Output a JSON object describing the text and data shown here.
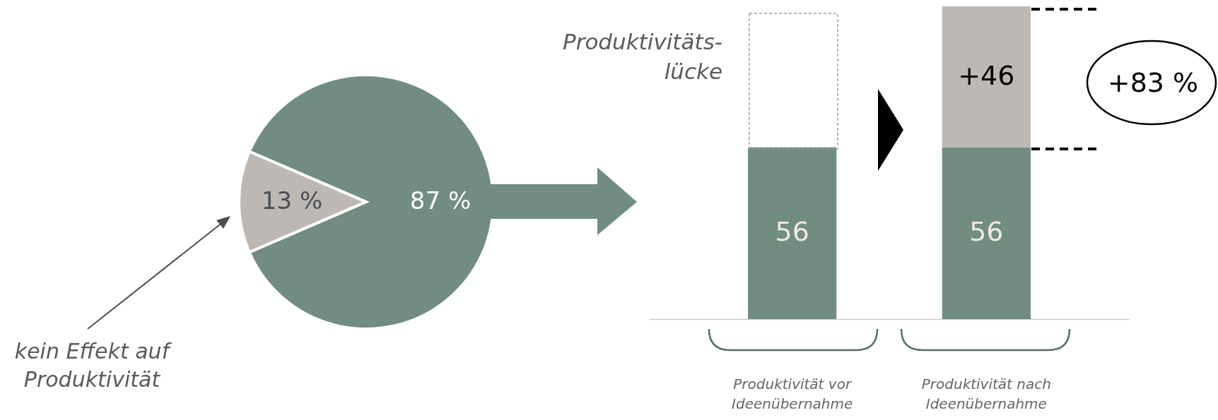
{
  "chart_data": [
    {
      "type": "pie",
      "categories": [
        null,
        null
      ],
      "values": [
        13,
        87
      ],
      "colors": [
        "#bdb8b3",
        "#718c80"
      ],
      "value_labels": [
        "13 %",
        "87 %"
      ],
      "annotations": [
        "kein Effekt auf Produktivität"
      ]
    },
    {
      "type": "bar",
      "stacked": true,
      "categories": [
        "Produktivität vor Ideenübernahme",
        "Produktivität nach Ideenübernahme"
      ],
      "series": [
        {
          "color": "#718c80",
          "values": [
            56,
            56
          ],
          "value_labels": [
            "56",
            "56"
          ]
        },
        {
          "color": "#bdb8b3",
          "values": [
            null,
            46
          ],
          "value_labels": [
            null,
            "+46"
          ]
        }
      ],
      "annotations": [
        "Produktivitäts-lücke",
        "+83 %"
      ]
    }
  ]
}
